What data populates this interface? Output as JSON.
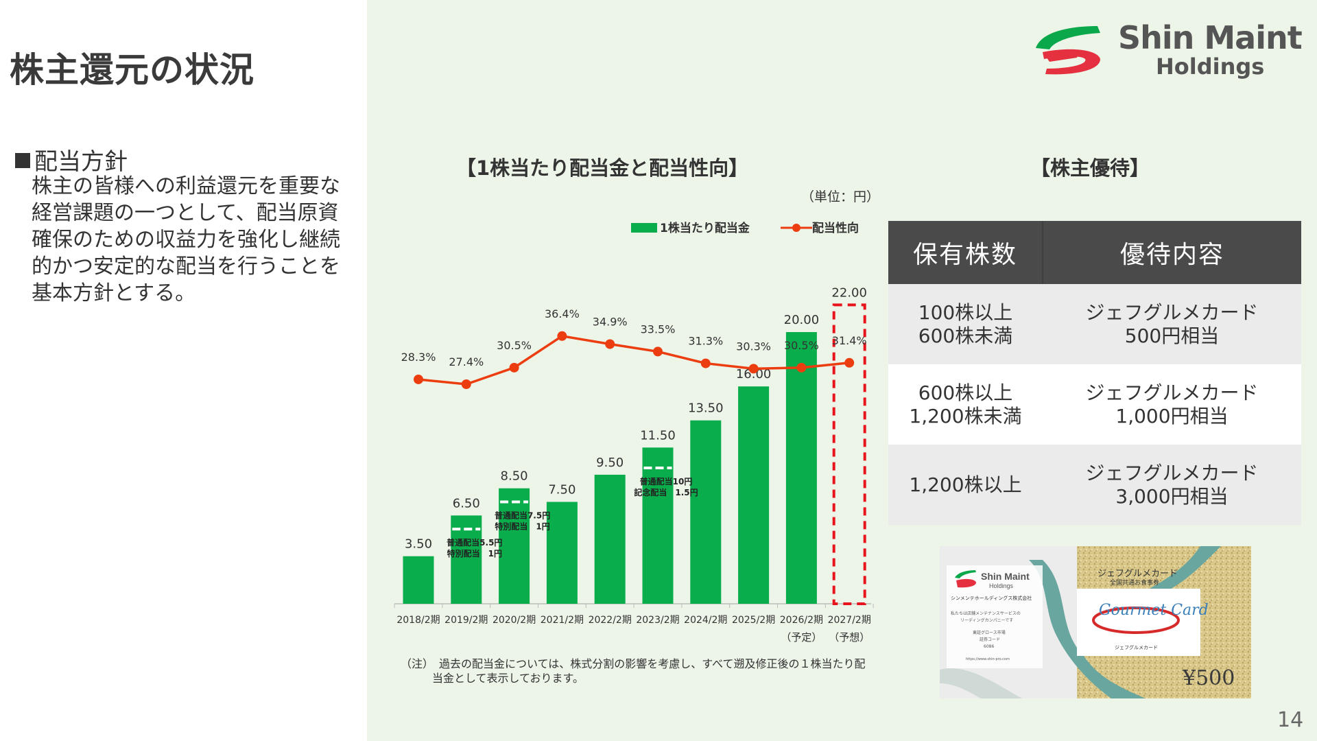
{
  "page": {
    "title": "株主還元の状況",
    "page_number": "14"
  },
  "logo": {
    "name": "Shin Maint",
    "sub": "Holdings"
  },
  "policy": {
    "heading": "配当方針",
    "text": "株主の皆様への利益還元を重要な経営課題の一つとして、配当原資確保のための収益力を強化し継続的かつ安定的な配当を行うことを基本方針とする。"
  },
  "chart_data": {
    "type": "bar",
    "title": "【1株当たり配当金と配当性向】",
    "unit": "（単位：円）",
    "legend": [
      "1株当たり配当金",
      "配当性向"
    ],
    "categories": [
      "2018/2期",
      "2019/2期",
      "2020/2期",
      "2021/2期",
      "2022/2期",
      "2023/2期",
      "2024/2期",
      "2025/2期",
      "2026/2期",
      "2027/2期"
    ],
    "category_sub": [
      "",
      "",
      "",
      "",
      "",
      "",
      "",
      "",
      "（予定）",
      "（予想）"
    ],
    "series": [
      {
        "name": "1株当たり配当金",
        "values": [
          3.5,
          6.5,
          8.5,
          7.5,
          9.5,
          11.5,
          13.5,
          16.0,
          20.0,
          22.0
        ],
        "labels": [
          "3.50",
          "6.50",
          "8.50",
          "7.50",
          "9.50",
          "11.50",
          "13.50",
          "16.00",
          "20.00",
          "22.00"
        ],
        "forecast_index": 9,
        "color": "#0aad4b"
      },
      {
        "name": "配当性向",
        "values": [
          28.3,
          27.4,
          30.5,
          36.4,
          34.9,
          33.5,
          31.3,
          30.3,
          30.5,
          31.4
        ],
        "labels": [
          "28.3%",
          "27.4%",
          "30.5%",
          "36.4%",
          "34.9%",
          "33.5%",
          "31.3%",
          "30.3%",
          "30.5%",
          "31.4%"
        ],
        "color": "#ec3d10"
      }
    ],
    "breakdowns": [
      {
        "index": 1,
        "split": 5.5,
        "lines": [
          "普通配当5.5円",
          "特別配当　1円"
        ]
      },
      {
        "index": 2,
        "split": 7.5,
        "lines": [
          "普通配当7.5円",
          "特別配当　1円"
        ]
      },
      {
        "index": 5,
        "split": 10,
        "lines": [
          "普通配当10円",
          "記念配当　1.5円"
        ]
      }
    ],
    "ylim": [
      0,
      24
    ]
  },
  "note": {
    "line1": "（注）　過去の配当金については、株式分割の影響を考慮し、すべて遡及修正後の１株当たり配",
    "line2": "当金として表示しております。"
  },
  "benefits": {
    "title": "【株主優待】",
    "headers": [
      "保有株数",
      "優待内容"
    ],
    "rows": [
      {
        "shares": [
          "100株以上",
          "600株未満"
        ],
        "content": [
          "ジェフグルメカード",
          "500円相当"
        ]
      },
      {
        "shares": [
          "600株以上",
          "1,200株未満"
        ],
        "content": [
          "ジェフグルメカード",
          "1,000円相当"
        ]
      },
      {
        "shares": [
          "1,200株以上"
        ],
        "content": [
          "ジェフグルメカード",
          "3,000円相当"
        ]
      }
    ]
  },
  "card": {
    "company_name": "Shin Maint",
    "company_sub": "Holdings",
    "company_jp": "シンメンテホールディングス株式会社",
    "desc1": "私たちは店舗メンテナンスサービスの",
    "desc2": "リーディングカンパニーです",
    "market": "東証グロース市場",
    "code_label": "証券コード",
    "code": "6086",
    "url": "https://www.shin-pro.com",
    "card_title": "ジェフグルメカード",
    "card_sub": "全国共通お食事券",
    "script": "Gourmet Card",
    "card_label": "ジェフグルメカード",
    "price": "¥500"
  },
  "colors": {
    "green": "#0aad4b",
    "red": "#ec3d10",
    "panel": "#edf4e8"
  }
}
